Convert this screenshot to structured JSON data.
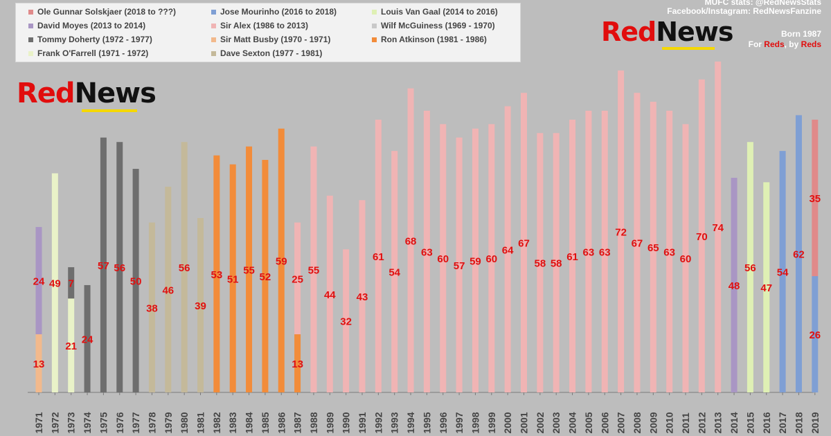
{
  "colors": {
    "background": "#bdbdbd",
    "label_red": "#e01010",
    "brand_red": "#e10d0d",
    "brand_black": "#111111",
    "brand_yellow": "#f5d800"
  },
  "branding": {
    "logo_text_red": "Red",
    "logo_text_black": "News",
    "credit_line1": "MUFC stats: @RedNewsStats",
    "credit_line2": "Facebook/Instagram: RedNewsFanzine",
    "born_line": "Born 1987",
    "tagline_for": "For",
    "tagline_reds1": "Reds",
    "tagline_by": ", by",
    "tagline_reds2": "Reds"
  },
  "legend": [
    {
      "label": "Ole Gunnar Solskjaer (2018 to ???)",
      "color": "#e08a8a"
    },
    {
      "label": "Jose Mourinho (2016 to 2018)",
      "color": "#7f9fd4"
    },
    {
      "label": "Louis Van Gaal (2014 to 2016)",
      "color": "#dff0b4"
    },
    {
      "label": "David Moyes (2013 to 2014)",
      "color": "#a996c4"
    },
    {
      "label": "Sir Alex (1986 to 2013)",
      "color": "#f0b4b4"
    },
    {
      "label": "Wilf McGuiness (1969 - 1970)",
      "color": "#c9c9c9"
    },
    {
      "label": "Tommy Doherty (1972 - 1977)",
      "color": "#6e6e6e"
    },
    {
      "label": "Sir Matt Busby (1970 - 1971)",
      "color": "#f2b98c"
    },
    {
      "label": "Ron Atkinson (1981 - 1986)",
      "color": "#f28c3a"
    },
    {
      "label": "Frank O'Farrell (1971 - 1972)",
      "color": "#e9f2c8"
    },
    {
      "label": "Dave Sexton (1977 - 1981)",
      "color": "#c4b99a"
    }
  ],
  "chart_data": {
    "type": "bar",
    "stacked": true,
    "ylim": [
      0,
      76
    ],
    "tick_prefix": "o",
    "categories": [
      "1971",
      "1972",
      "1973",
      "1974",
      "1975",
      "1976",
      "1977",
      "1978",
      "1979",
      "1980",
      "1981",
      "1982",
      "1983",
      "1984",
      "1985",
      "1986",
      "1987",
      "1988",
      "1989",
      "1990",
      "1991",
      "1992",
      "1993",
      "1994",
      "1995",
      "1996",
      "1997",
      "1998",
      "1999",
      "2000",
      "2001",
      "2002",
      "2003",
      "2004",
      "2005",
      "2006",
      "2007",
      "2008",
      "2009",
      "2010",
      "2011",
      "2012",
      "2013",
      "2014",
      "2015",
      "2016",
      "2017",
      "2018",
      "2019"
    ],
    "bars": [
      {
        "segments": [
          {
            "value": 13,
            "color": "#f2b98c"
          },
          {
            "value": 24,
            "color": "#a996c4"
          }
        ]
      },
      {
        "segments": [
          {
            "value": 49,
            "color": "#e9f2c8"
          }
        ]
      },
      {
        "segments": [
          {
            "value": 21,
            "color": "#e9f2c8"
          },
          {
            "value": 7,
            "color": "#6e6e6e"
          }
        ]
      },
      {
        "segments": [
          {
            "value": 24,
            "color": "#6e6e6e"
          }
        ]
      },
      {
        "segments": [
          {
            "value": 57,
            "color": "#6e6e6e"
          }
        ]
      },
      {
        "segments": [
          {
            "value": 56,
            "color": "#6e6e6e"
          }
        ]
      },
      {
        "segments": [
          {
            "value": 50,
            "color": "#6e6e6e"
          }
        ]
      },
      {
        "segments": [
          {
            "value": 38,
            "color": "#c4b99a"
          }
        ]
      },
      {
        "segments": [
          {
            "value": 46,
            "color": "#c4b99a"
          }
        ]
      },
      {
        "segments": [
          {
            "value": 56,
            "color": "#c4b99a"
          }
        ]
      },
      {
        "segments": [
          {
            "value": 39,
            "color": "#c4b99a"
          }
        ]
      },
      {
        "segments": [
          {
            "value": 53,
            "color": "#f28c3a"
          }
        ]
      },
      {
        "segments": [
          {
            "value": 51,
            "color": "#f28c3a"
          }
        ]
      },
      {
        "segments": [
          {
            "value": 55,
            "color": "#f28c3a"
          }
        ]
      },
      {
        "segments": [
          {
            "value": 52,
            "color": "#f28c3a"
          }
        ]
      },
      {
        "segments": [
          {
            "value": 59,
            "color": "#f28c3a"
          }
        ]
      },
      {
        "segments": [
          {
            "value": 13,
            "color": "#f28c3a"
          },
          {
            "value": 25,
            "color": "#f0b4b4"
          }
        ]
      },
      {
        "segments": [
          {
            "value": 55,
            "color": "#f0b4b4"
          }
        ]
      },
      {
        "segments": [
          {
            "value": 44,
            "color": "#f0b4b4"
          }
        ]
      },
      {
        "segments": [
          {
            "value": 32,
            "color": "#f0b4b4"
          }
        ]
      },
      {
        "segments": [
          {
            "value": 43,
            "color": "#f0b4b4"
          }
        ]
      },
      {
        "segments": [
          {
            "value": 61,
            "color": "#f0b4b4"
          }
        ]
      },
      {
        "segments": [
          {
            "value": 54,
            "color": "#f0b4b4"
          }
        ]
      },
      {
        "segments": [
          {
            "value": 68,
            "color": "#f0b4b4"
          }
        ]
      },
      {
        "segments": [
          {
            "value": 63,
            "color": "#f0b4b4"
          }
        ]
      },
      {
        "segments": [
          {
            "value": 60,
            "color": "#f0b4b4"
          }
        ]
      },
      {
        "segments": [
          {
            "value": 57,
            "color": "#f0b4b4"
          }
        ]
      },
      {
        "segments": [
          {
            "value": 59,
            "color": "#f0b4b4"
          }
        ]
      },
      {
        "segments": [
          {
            "value": 60,
            "color": "#f0b4b4"
          }
        ]
      },
      {
        "segments": [
          {
            "value": 64,
            "color": "#f0b4b4"
          }
        ]
      },
      {
        "segments": [
          {
            "value": 67,
            "color": "#f0b4b4"
          }
        ]
      },
      {
        "segments": [
          {
            "value": 58,
            "color": "#f0b4b4"
          }
        ]
      },
      {
        "segments": [
          {
            "value": 58,
            "color": "#f0b4b4"
          }
        ]
      },
      {
        "segments": [
          {
            "value": 61,
            "color": "#f0b4b4"
          }
        ]
      },
      {
        "segments": [
          {
            "value": 63,
            "color": "#f0b4b4"
          }
        ]
      },
      {
        "segments": [
          {
            "value": 63,
            "color": "#f0b4b4"
          }
        ]
      },
      {
        "segments": [
          {
            "value": 72,
            "color": "#f0b4b4"
          }
        ]
      },
      {
        "segments": [
          {
            "value": 67,
            "color": "#f0b4b4"
          }
        ]
      },
      {
        "segments": [
          {
            "value": 65,
            "color": "#f0b4b4"
          }
        ]
      },
      {
        "segments": [
          {
            "value": 63,
            "color": "#f0b4b4"
          }
        ]
      },
      {
        "segments": [
          {
            "value": 60,
            "color": "#f0b4b4"
          }
        ]
      },
      {
        "segments": [
          {
            "value": 70,
            "color": "#f0b4b4"
          }
        ]
      },
      {
        "segments": [
          {
            "value": 74,
            "color": "#f0b4b4"
          }
        ]
      },
      {
        "segments": [
          {
            "value": 48,
            "color": "#a996c4"
          }
        ]
      },
      {
        "segments": [
          {
            "value": 56,
            "color": "#dff0b4"
          }
        ]
      },
      {
        "segments": [
          {
            "value": 47,
            "color": "#dff0b4"
          }
        ]
      },
      {
        "segments": [
          {
            "value": 54,
            "color": "#7f9fd4"
          }
        ]
      },
      {
        "segments": [
          {
            "value": 62,
            "color": "#7f9fd4"
          }
        ]
      },
      {
        "segments": [
          {
            "value": 26,
            "color": "#7f9fd4"
          },
          {
            "value": 35,
            "color": "#e08a8a"
          }
        ]
      }
    ]
  }
}
